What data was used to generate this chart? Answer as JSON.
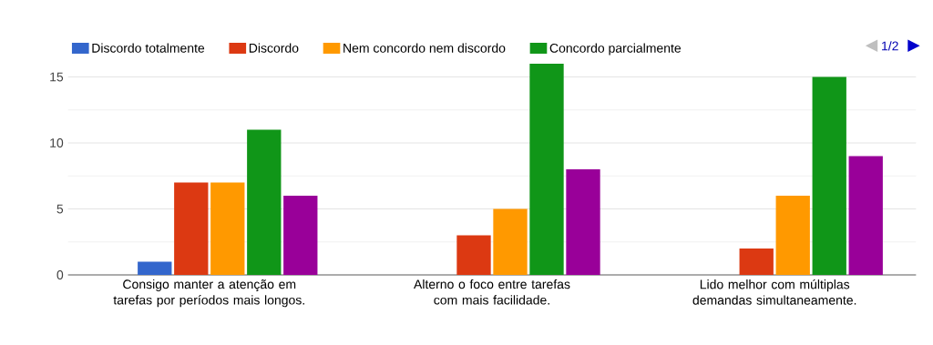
{
  "chart_data": {
    "type": "bar",
    "categories": [
      "Consigo manter a atenção em tarefas por períodos mais longos.",
      "Alterno o foco entre tarefas com mais facilidade.",
      "Lido melhor com múltiplas demandas simultaneamente."
    ],
    "series": [
      {
        "name": "Discordo totalmente",
        "color": "#3366cc",
        "values": [
          1,
          0,
          0
        ]
      },
      {
        "name": "Discordo",
        "color": "#dc3912",
        "values": [
          7,
          3,
          2
        ]
      },
      {
        "name": "Nem concordo nem discordo",
        "color": "#ff9900",
        "values": [
          7,
          5,
          6
        ]
      },
      {
        "name": "Concordo parcialmente",
        "color": "#109618",
        "values": [
          11,
          16,
          15
        ]
      },
      {
        "color": "#990099",
        "values": [
          6,
          8,
          9
        ]
      }
    ],
    "ylim": [
      0,
      16
    ],
    "yticks": [
      0,
      5,
      10,
      15
    ],
    "grid": "y",
    "legend": "top",
    "annotations": [
      "1/2"
    ]
  }
}
